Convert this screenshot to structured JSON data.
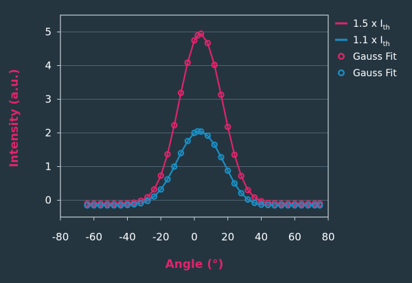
{
  "chart_data": {
    "type": "line",
    "xlabel": "Angle (°)",
    "ylabel": "Intensity (a.u.)",
    "xlim": [
      -80,
      80
    ],
    "ylim": [
      -0.5,
      5.5
    ],
    "x_ticks": [
      -80,
      -60,
      -40,
      -20,
      0,
      20,
      40,
      60,
      80
    ],
    "y_ticks": [
      0,
      1,
      2,
      3,
      4,
      5
    ],
    "grid": "horizontal",
    "legend_position": "outside-top-right",
    "colors": {
      "pink": "#e0246a",
      "blue": "#1a8fc4",
      "background": "#243540",
      "axes": "#c7d0d6",
      "grid": "#4f6472"
    },
    "x": [
      -64,
      -60,
      -56,
      -52,
      -48,
      -44,
      -40,
      -36,
      -32,
      -28,
      -24,
      -20,
      -16,
      -12,
      -8,
      -4,
      0,
      2,
      4,
      8,
      12,
      16,
      20,
      24,
      28,
      32,
      36,
      40,
      44,
      48,
      52,
      56,
      60,
      64,
      68,
      72,
      75
    ],
    "series": [
      {
        "name": "1.5 x I",
        "subscript": "th",
        "kind": "line",
        "color": "#e0246a",
        "values": [
          -0.1,
          -0.1,
          -0.1,
          -0.1,
          -0.1,
          -0.1,
          -0.09,
          -0.07,
          -0.02,
          0.09,
          0.32,
          0.73,
          1.37,
          2.23,
          3.19,
          4.09,
          4.75,
          4.9,
          4.95,
          4.67,
          4.02,
          3.13,
          2.18,
          1.35,
          0.72,
          0.3,
          0.08,
          -0.03,
          -0.08,
          -0.09,
          -0.1,
          -0.1,
          -0.1,
          -0.1,
          -0.1,
          -0.1,
          -0.1
        ]
      },
      {
        "name": "1.1 x I",
        "subscript": "th",
        "kind": "line",
        "color": "#1a8fc4",
        "values": [
          -0.15,
          -0.15,
          -0.15,
          -0.15,
          -0.15,
          -0.15,
          -0.14,
          -0.12,
          -0.09,
          -0.02,
          0.11,
          0.32,
          0.62,
          1.0,
          1.4,
          1.76,
          2.0,
          2.05,
          2.04,
          1.92,
          1.65,
          1.28,
          0.88,
          0.5,
          0.21,
          0.02,
          -0.08,
          -0.13,
          -0.14,
          -0.15,
          -0.15,
          -0.15,
          -0.15,
          -0.15,
          -0.15,
          -0.15,
          -0.15
        ]
      },
      {
        "name": "Gauss Fit",
        "kind": "markers",
        "color": "#e0246a",
        "values": [
          -0.1,
          -0.1,
          -0.1,
          -0.1,
          -0.1,
          -0.1,
          -0.09,
          -0.07,
          -0.02,
          0.09,
          0.32,
          0.73,
          1.37,
          2.23,
          3.19,
          4.09,
          4.75,
          4.9,
          4.95,
          4.67,
          4.02,
          3.13,
          2.18,
          1.35,
          0.72,
          0.3,
          0.08,
          -0.03,
          -0.08,
          -0.09,
          -0.1,
          -0.1,
          -0.1,
          -0.1,
          -0.1,
          -0.1,
          -0.1
        ]
      },
      {
        "name": "Gauss Fit",
        "kind": "markers",
        "color": "#1a8fc4",
        "values": [
          -0.15,
          -0.15,
          -0.15,
          -0.15,
          -0.15,
          -0.15,
          -0.14,
          -0.12,
          -0.09,
          -0.02,
          0.11,
          0.32,
          0.62,
          1.0,
          1.4,
          1.76,
          2.0,
          2.05,
          2.04,
          1.92,
          1.65,
          1.28,
          0.88,
          0.5,
          0.21,
          0.02,
          -0.08,
          -0.13,
          -0.14,
          -0.15,
          -0.15,
          -0.15,
          -0.15,
          -0.15,
          -0.15,
          -0.15,
          -0.15
        ]
      }
    ]
  }
}
